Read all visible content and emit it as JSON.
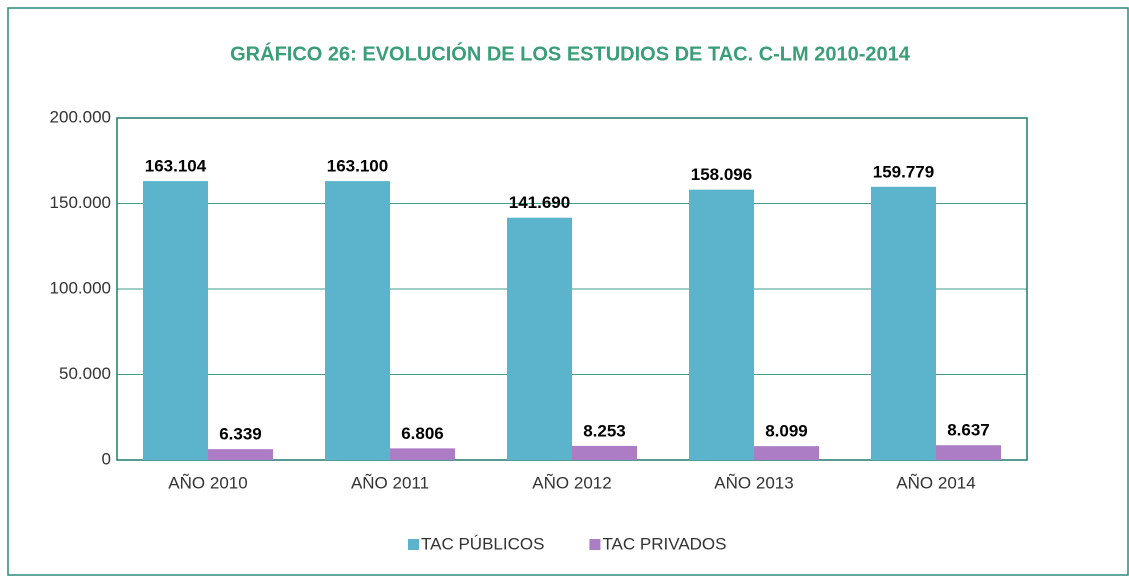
{
  "chart_data": {
    "type": "bar",
    "title": "GRÁFICO 26: EVOLUCIÓN DE LOS ESTUDIOS DE TAC. C-LM 2010-2014",
    "categories": [
      "AÑO 2010",
      "AÑO 2011",
      "AÑO 2012",
      "AÑO 2013",
      "AÑO 2014"
    ],
    "series": [
      {
        "name": "TAC PÚBLICOS",
        "color": "#5bb4cb",
        "values": [
          163104,
          163100,
          141690,
          158096,
          159779
        ],
        "value_labels": [
          "163.104",
          "163.100",
          "141.690",
          "158.096",
          "159.779"
        ]
      },
      {
        "name": "TAC PRIVADOS",
        "color": "#ac7cc4",
        "values": [
          6339,
          6806,
          8253,
          8099,
          8637
        ],
        "value_labels": [
          "6.339",
          "6.806",
          "8.253",
          "8.099",
          "8.637"
        ]
      }
    ],
    "ylim": [
      0,
      200000
    ],
    "yticks": [
      0,
      {
        "value": 50000,
        "label": "50.000"
      },
      {
        "value": 100000,
        "label": "100.000"
      },
      {
        "value": 150000,
        "label": "150.000"
      },
      {
        "value": 200000,
        "label": "200.000"
      }
    ],
    "grid": true,
    "legend": "bottom"
  }
}
